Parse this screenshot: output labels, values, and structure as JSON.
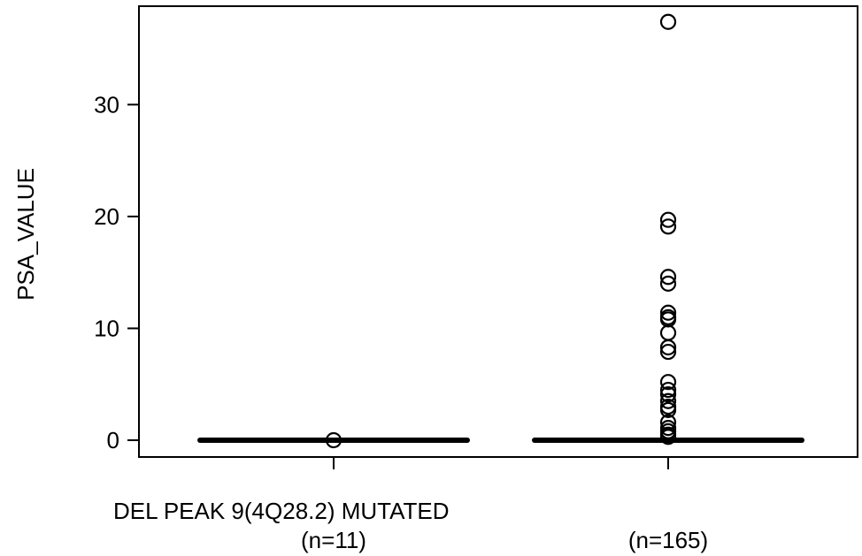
{
  "chart_data": {
    "type": "box",
    "ylabel": "PSA_VALUE",
    "x_caption": "DEL PEAK  9(4Q28.2) MUTATED",
    "y_ticks": [
      0,
      10,
      20,
      30
    ],
    "ylim": [
      -1.5,
      38.8
    ],
    "grid": false,
    "legend": "none",
    "groups": [
      {
        "label": "(n=11)",
        "median": 0.0,
        "q1": 0.0,
        "q3": 0.0,
        "whisker_low": 0.0,
        "whisker_high": 0.0,
        "outliers": [
          0.0
        ]
      },
      {
        "label": "(n=165)",
        "median": 0.0,
        "q1": 0.0,
        "q3": 0.0,
        "whisker_low": 0.0,
        "whisker_high": 0.0,
        "outliers": [
          37.4,
          19.7,
          19.1,
          14.6,
          14.0,
          11.4,
          11.0,
          10.8,
          9.6,
          8.3,
          7.9,
          5.2,
          4.5,
          4.1,
          3.5,
          3.0,
          2.7,
          1.6,
          1.1,
          0.8,
          0.5,
          0.3
        ]
      }
    ]
  }
}
